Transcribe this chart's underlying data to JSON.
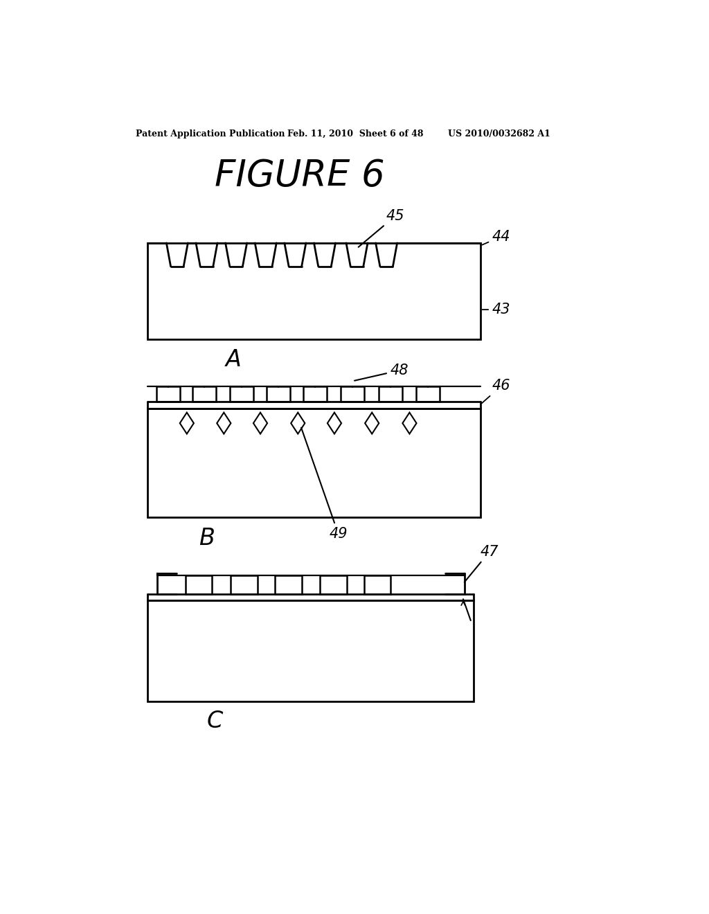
{
  "bg_color": "#ffffff",
  "text_color": "#000000",
  "line_color": "#000000",
  "header_left": "Patent Application Publication",
  "header_mid": "Feb. 11, 2010  Sheet 6 of 48",
  "header_right": "US 2010/0032682 A1",
  "title": "FIGURE 6",
  "label_A": "A",
  "label_B": "B",
  "label_C": "C",
  "fig_width": 10.24,
  "fig_height": 13.2
}
